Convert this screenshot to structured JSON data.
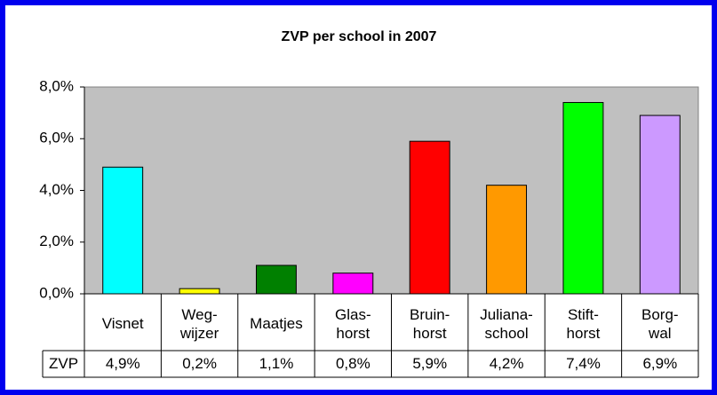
{
  "chart_data": {
    "type": "bar",
    "title": "ZVP per school in 2007",
    "categories": [
      "Visnet",
      "Weg-\nwijzer",
      "Maatjes",
      "Glas-\nhorst",
      "Bruin-\nhorst",
      "Juliana-\nschool",
      "Stift-\nhorst",
      "Borg-\nwal"
    ],
    "series": [
      {
        "name": "ZVP",
        "values": [
          4.9,
          0.2,
          1.1,
          0.8,
          5.9,
          4.2,
          7.4,
          6.9
        ],
        "value_labels": [
          "4,9%",
          "0,2%",
          "1,1%",
          "0,8%",
          "5,9%",
          "4,2%",
          "7,4%",
          "6,9%"
        ],
        "colors": [
          "#00ffff",
          "#ffff00",
          "#008000",
          "#ff00ff",
          "#ff0000",
          "#ff9900",
          "#00ff00",
          "#cc99ff"
        ]
      }
    ],
    "ylim": [
      0,
      8
    ],
    "yticks": [
      {
        "value": 0,
        "label": "0,0%"
      },
      {
        "value": 2,
        "label": "2,0%"
      },
      {
        "value": 4,
        "label": "4,0%"
      },
      {
        "value": 6,
        "label": "6,0%"
      },
      {
        "value": 8,
        "label": "8,0%"
      }
    ],
    "grid": false,
    "plot_background": "#c0c0c0"
  }
}
